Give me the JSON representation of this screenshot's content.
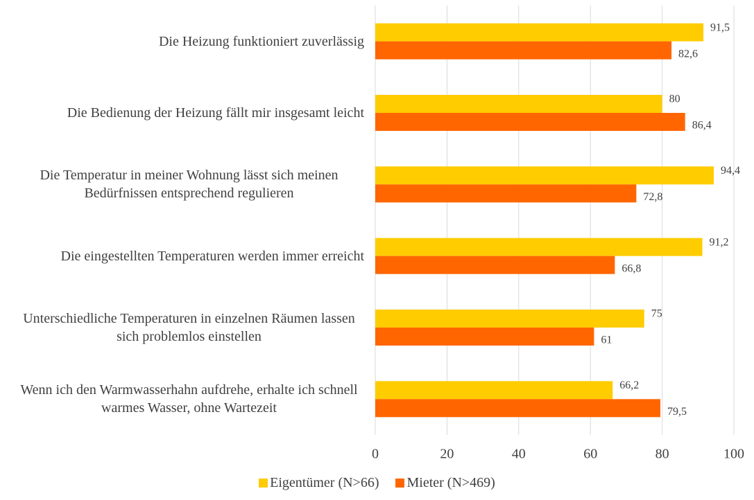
{
  "chart_data": {
    "type": "hbar",
    "categories": [
      "Die Heizung funktioniert zuverlässig",
      "Die Bedienung der Heizung fällt mir insgesamt leicht",
      "Die Temperatur in meiner Wohnung lässt sich meinen Bedürfnissen entsprechend regulieren",
      "Die eingestellten Temperaturen werden immer erreicht",
      "Unterschiedliche Temperaturen in einzelnen Räumen lassen sich problemlos einstellen",
      "Wenn ich den Warmwasserhahn aufdrehe, erhalte ich schnell warmes Wasser, ohne Wartezeit"
    ],
    "series": [
      {
        "name": "Eigentümer (N>66)",
        "color": "#FFCC00",
        "values": [
          91.5,
          80,
          94.4,
          91.2,
          75,
          66.2
        ],
        "value_labels": [
          "91,5",
          "80",
          "94,4",
          "91,2",
          "75",
          "66,2"
        ]
      },
      {
        "name": "Mieter (N>469)",
        "color": "#FF6600",
        "values": [
          82.6,
          86.4,
          72.8,
          66.8,
          61,
          79.5
        ],
        "value_labels": [
          "82,6",
          "86,4",
          "72,8",
          "66,8",
          "61",
          "79,5"
        ]
      }
    ],
    "xlim": [
      0,
      100
    ],
    "xticks": [
      0,
      20,
      40,
      60,
      80,
      100
    ],
    "grid": true,
    "legend": "bottom"
  }
}
